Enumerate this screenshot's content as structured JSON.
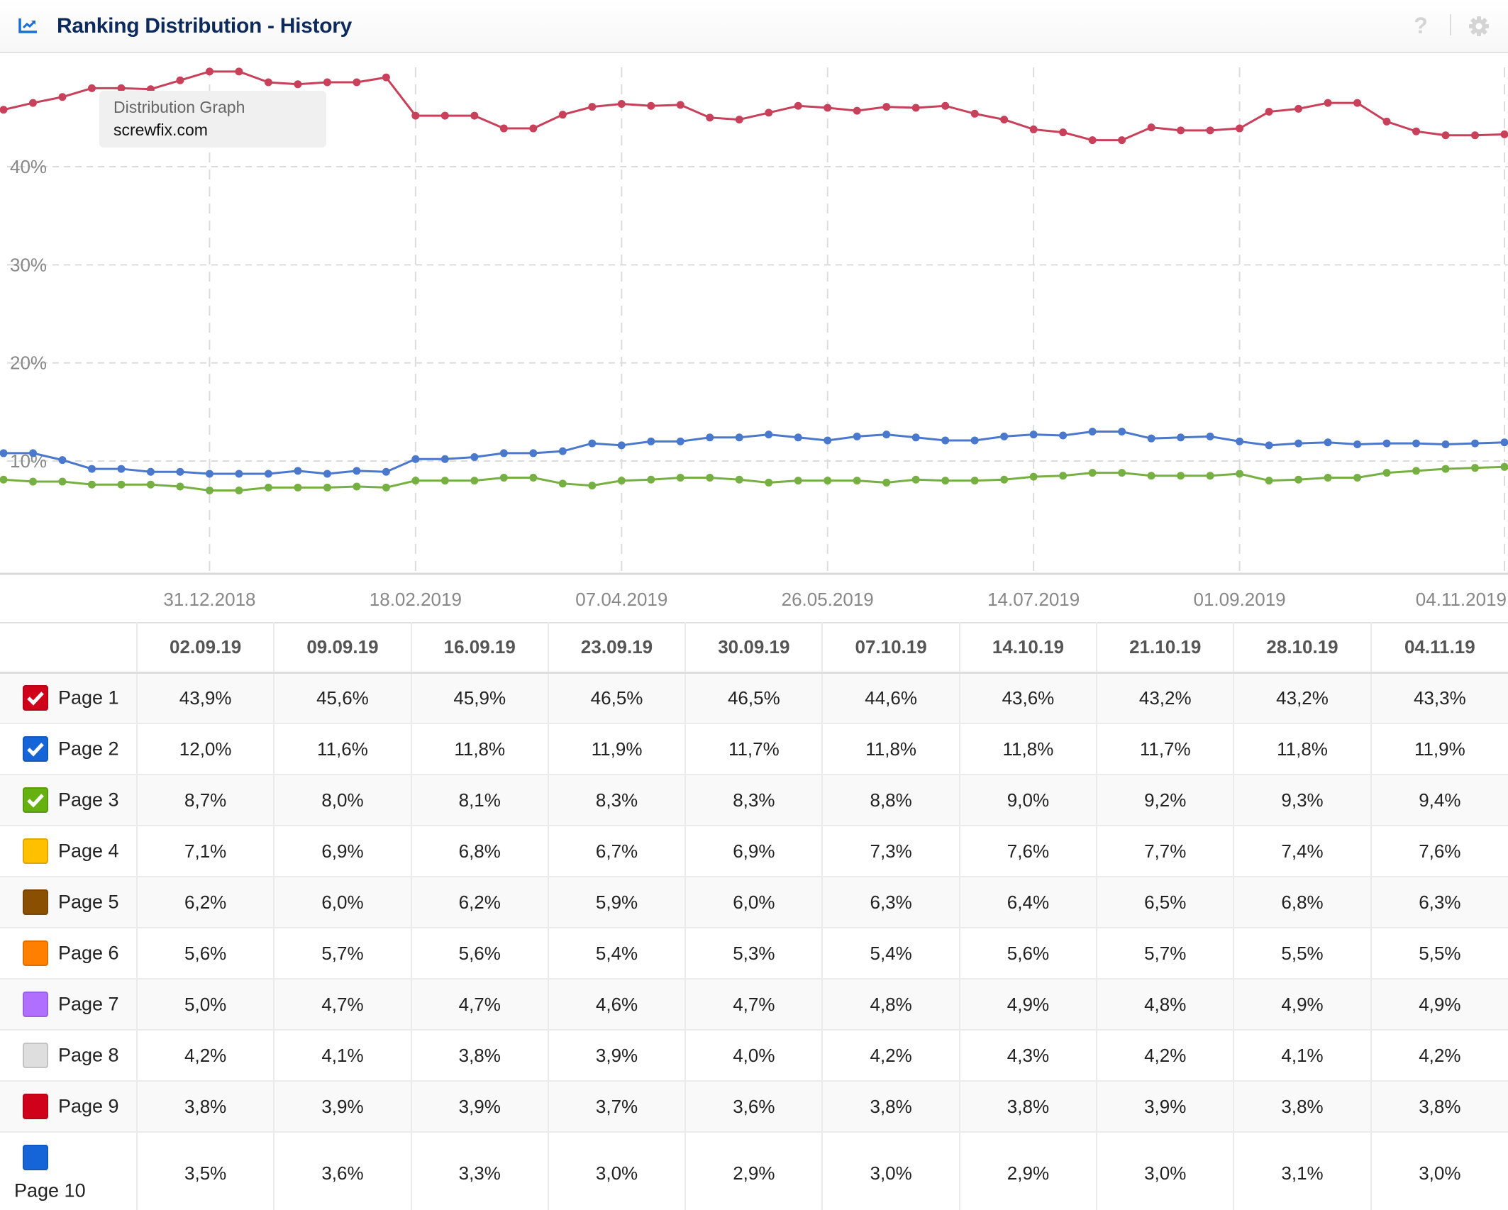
{
  "header": {
    "title": "Ranking Distribution - History",
    "icon": "line-chart-icon",
    "help_icon": "question-mark-icon",
    "settings_icon": "gear-icon",
    "help_glyph": "?"
  },
  "tooltip": {
    "title": "Distribution Graph",
    "domain": "screwfix.com"
  },
  "chart_data": {
    "type": "line",
    "title": "Ranking Distribution - History",
    "xlabel": "",
    "ylabel": "",
    "ylim": [
      0,
      50
    ],
    "y_ticks": [
      10,
      20,
      30,
      40
    ],
    "y_tick_labels": [
      "10%",
      "20%",
      "30%",
      "40%"
    ],
    "grid": true,
    "x_start": "12.11.2018",
    "x_step_days": 7,
    "x_tick_labels": [
      "31.12.2018",
      "18.02.2019",
      "07.04.2019",
      "26.05.2019",
      "14.07.2019",
      "01.09.2019",
      "04.11.2019"
    ],
    "x_tick_indices": [
      7,
      14,
      21,
      28,
      35,
      42,
      51
    ],
    "series": [
      {
        "name": "Page 1",
        "color": "#c8405a",
        "values": [
          45.8,
          46.5,
          47.1,
          48.0,
          48.0,
          47.9,
          48.8,
          49.7,
          49.7,
          48.6,
          48.4,
          48.6,
          48.6,
          49.1,
          45.2,
          45.2,
          45.2,
          43.9,
          43.9,
          45.3,
          46.1,
          46.4,
          46.2,
          46.3,
          45.0,
          44.8,
          45.5,
          46.2,
          46.0,
          45.7,
          46.1,
          46.0,
          46.2,
          45.4,
          44.8,
          43.8,
          43.5,
          42.7,
          42.7,
          44.0,
          43.7,
          43.7,
          43.9,
          45.6,
          45.9,
          46.5,
          46.5,
          44.6,
          43.6,
          43.2,
          43.2,
          43.3
        ]
      },
      {
        "name": "Page 2",
        "color": "#4a78cc",
        "values": [
          10.8,
          10.8,
          10.1,
          9.2,
          9.2,
          8.9,
          8.9,
          8.7,
          8.7,
          8.7,
          9.0,
          8.7,
          9.0,
          8.9,
          10.2,
          10.2,
          10.4,
          10.8,
          10.8,
          11.0,
          11.8,
          11.6,
          12.0,
          12.0,
          12.4,
          12.4,
          12.7,
          12.4,
          12.1,
          12.5,
          12.7,
          12.4,
          12.1,
          12.1,
          12.5,
          12.7,
          12.6,
          13.0,
          13.0,
          12.3,
          12.4,
          12.5,
          12.0,
          11.6,
          11.8,
          11.9,
          11.7,
          11.8,
          11.8,
          11.7,
          11.8,
          11.9
        ]
      },
      {
        "name": "Page 3",
        "color": "#76b043",
        "values": [
          8.1,
          7.9,
          7.9,
          7.6,
          7.6,
          7.6,
          7.4,
          7.0,
          7.0,
          7.3,
          7.3,
          7.3,
          7.4,
          7.3,
          8.0,
          8.0,
          8.0,
          8.3,
          8.3,
          7.7,
          7.5,
          8.0,
          8.1,
          8.3,
          8.3,
          8.1,
          7.8,
          8.0,
          8.0,
          8.0,
          7.8,
          8.1,
          8.0,
          8.0,
          8.1,
          8.4,
          8.5,
          8.8,
          8.8,
          8.5,
          8.5,
          8.5,
          8.7,
          8.0,
          8.1,
          8.3,
          8.3,
          8.8,
          9.0,
          9.2,
          9.3,
          9.4
        ]
      }
    ]
  },
  "table": {
    "columns": [
      "02.09.19",
      "09.09.19",
      "16.09.19",
      "23.09.19",
      "30.09.19",
      "07.10.19",
      "14.10.19",
      "21.10.19",
      "28.10.19",
      "04.11.19"
    ],
    "rows": [
      {
        "label": "Page 1",
        "color": "#d0021b",
        "checked": true,
        "values": [
          "43,9%",
          "45,6%",
          "45,9%",
          "46,5%",
          "46,5%",
          "44,6%",
          "43,6%",
          "43,2%",
          "43,2%",
          "43,3%"
        ]
      },
      {
        "label": "Page 2",
        "color": "#1565d8",
        "checked": true,
        "values": [
          "12,0%",
          "11,6%",
          "11,8%",
          "11,9%",
          "11,7%",
          "11,8%",
          "11,8%",
          "11,7%",
          "11,8%",
          "11,9%"
        ]
      },
      {
        "label": "Page 3",
        "color": "#66b10f",
        "checked": true,
        "values": [
          "8,7%",
          "8,0%",
          "8,1%",
          "8,3%",
          "8,3%",
          "8,8%",
          "9,0%",
          "9,2%",
          "9,3%",
          "9,4%"
        ]
      },
      {
        "label": "Page 4",
        "color": "#ffc000",
        "checked": false,
        "values": [
          "7,1%",
          "6,9%",
          "6,8%",
          "6,7%",
          "6,9%",
          "7,3%",
          "7,6%",
          "7,7%",
          "7,4%",
          "7,6%"
        ]
      },
      {
        "label": "Page 5",
        "color": "#8b4f00",
        "checked": false,
        "values": [
          "6,2%",
          "6,0%",
          "6,2%",
          "5,9%",
          "6,0%",
          "6,3%",
          "6,4%",
          "6,5%",
          "6,8%",
          "6,3%"
        ]
      },
      {
        "label": "Page 6",
        "color": "#ff7f00",
        "checked": false,
        "values": [
          "5,6%",
          "5,7%",
          "5,6%",
          "5,4%",
          "5,3%",
          "5,4%",
          "5,6%",
          "5,7%",
          "5,5%",
          "5,5%"
        ]
      },
      {
        "label": "Page 7",
        "color": "#b06fff",
        "checked": false,
        "values": [
          "5,0%",
          "4,7%",
          "4,7%",
          "4,6%",
          "4,7%",
          "4,8%",
          "4,9%",
          "4,8%",
          "4,9%",
          "4,9%"
        ]
      },
      {
        "label": "Page 8",
        "color": "#dedede",
        "checked": false,
        "values": [
          "4,2%",
          "4,1%",
          "3,8%",
          "3,9%",
          "4,0%",
          "4,2%",
          "4,3%",
          "4,2%",
          "4,1%",
          "4,2%"
        ]
      },
      {
        "label": "Page 9",
        "color": "#d0021b",
        "checked": false,
        "values": [
          "3,8%",
          "3,9%",
          "3,9%",
          "3,7%",
          "3,6%",
          "3,8%",
          "3,8%",
          "3,9%",
          "3,8%",
          "3,8%"
        ]
      },
      {
        "label": "Page 10",
        "color": "#1565d8",
        "checked": false,
        "values": [
          "3,5%",
          "3,6%",
          "3,3%",
          "3,0%",
          "2,9%",
          "3,0%",
          "2,9%",
          "3,0%",
          "3,1%",
          "3,0%"
        ]
      }
    ]
  }
}
